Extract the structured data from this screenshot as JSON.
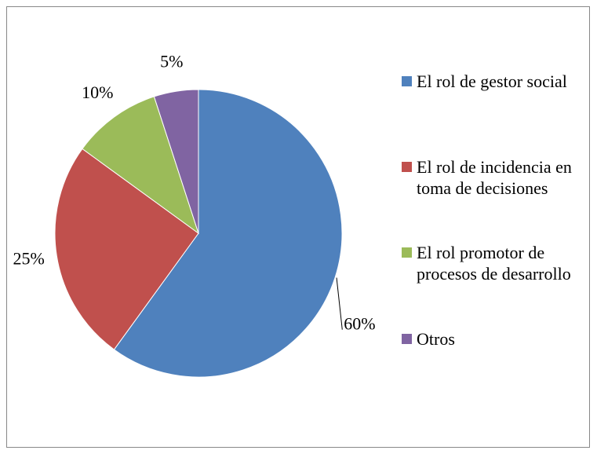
{
  "chart_data": {
    "type": "pie",
    "categories": [
      "El rol de gestor social",
      "El rol de incidencia en toma de decisiones",
      "El rol promotor de procesos de desarrollo",
      "Otros"
    ],
    "values": [
      60,
      25,
      10,
      5
    ],
    "value_labels": [
      "60%",
      "25%",
      "10%",
      "5%"
    ],
    "colors": [
      "#4f81bd",
      "#c0504d",
      "#9bbb59",
      "#8064a2"
    ],
    "legend": "right"
  }
}
